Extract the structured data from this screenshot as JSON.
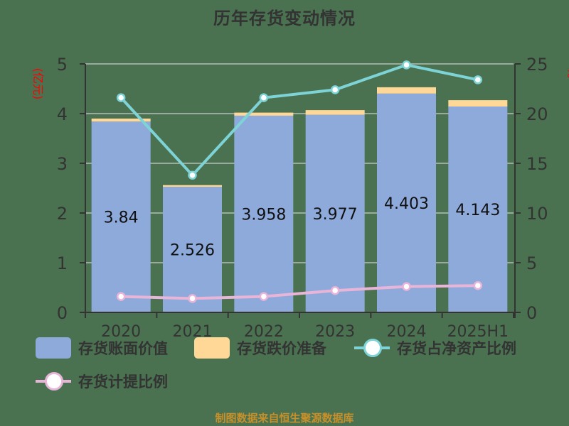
{
  "title": "历年存货变动情况",
  "left_axis_unit": "(亿元)",
  "right_axis_unit": "%",
  "source_note": "制图数据来自恒生聚源数据库",
  "legend": [
    {
      "label": "存货账面价值",
      "type": "bar",
      "color": "#8eaadb"
    },
    {
      "label": "存货跌价准备",
      "type": "bar",
      "color": "#ffd898"
    },
    {
      "label": "存货占净资产比例",
      "type": "line",
      "color": "#7ed3d6"
    },
    {
      "label": "存货计提比例",
      "type": "line",
      "color": "#e8b4d8"
    }
  ],
  "chart_data": {
    "type": "bar",
    "title": "历年存货变动情况",
    "categories": [
      "2020",
      "2021",
      "2022",
      "2023",
      "2024",
      "2025H1"
    ],
    "series": [
      {
        "name": "存货账面价值",
        "type": "bar",
        "stack": "inv",
        "axis": "left",
        "color": "#8eaadb",
        "values": [
          3.84,
          2.526,
          3.958,
          3.977,
          4.403,
          4.143
        ],
        "labels": [
          "3.84",
          "2.526",
          "3.958",
          "3.977",
          "4.403",
          "4.143"
        ]
      },
      {
        "name": "存货跌价准备",
        "type": "bar",
        "stack": "inv",
        "axis": "left",
        "color": "#ffd898",
        "values": [
          0.06,
          0.035,
          0.062,
          0.093,
          0.127,
          0.127
        ]
      },
      {
        "name": "存货占净资产比例",
        "type": "line",
        "axis": "right",
        "color": "#7ed3d6",
        "values": [
          21.6,
          13.8,
          21.6,
          22.4,
          24.9,
          23.4
        ]
      },
      {
        "name": "存货计提比例",
        "type": "line",
        "axis": "right",
        "color": "#e8b4d8",
        "values": [
          1.6,
          1.4,
          1.6,
          2.2,
          2.6,
          2.7
        ]
      }
    ],
    "ylabel": "(亿元)",
    "y2label": "%",
    "ylim": [
      0,
      5
    ],
    "y2lim": [
      0,
      25
    ],
    "yticks": [
      0,
      1,
      2,
      3,
      4,
      5
    ],
    "y2ticks": [
      0,
      5,
      10,
      15,
      20,
      25
    ],
    "grid": true,
    "legend_position": "bottom"
  }
}
